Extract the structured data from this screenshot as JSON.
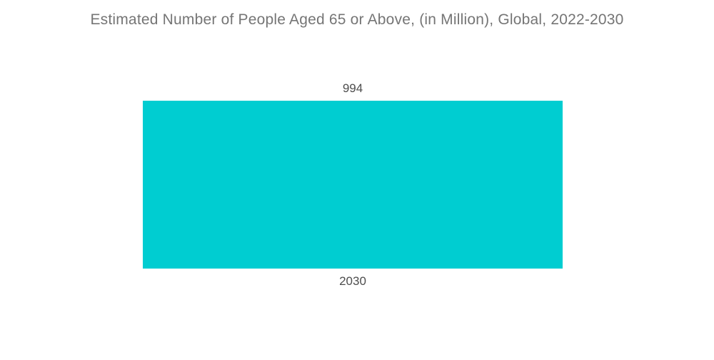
{
  "chart_data": {
    "type": "bar",
    "title": "Estimated Number of People Aged 65 or Above, (in Million), Global, 2022-2030",
    "categories": [
      "2030"
    ],
    "values": [
      994
    ],
    "xlabel": "",
    "ylabel": "",
    "ylim": [
      0,
      994
    ],
    "grid": false,
    "legend": false,
    "axes_visible": false,
    "bar_color": "#00CDD1",
    "title_color": "#757575",
    "label_color": "#4d4d4d",
    "background_color": "#ffffff"
  }
}
